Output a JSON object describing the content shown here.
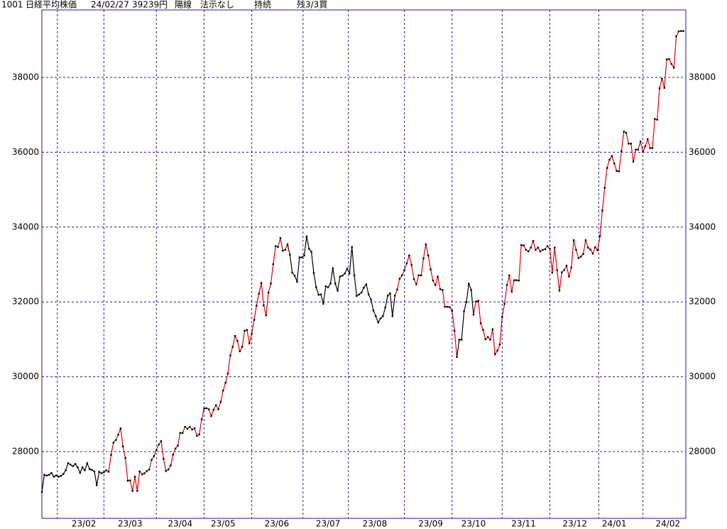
{
  "chart_data": {
    "type": "line",
    "title_items": [
      "1001",
      "日経平均株価",
      "24/02/27",
      "39239円",
      "陽線",
      "法示なし",
      "持続",
      "残3/3買"
    ],
    "values": [
      26920,
      27380,
      27360,
      27380,
      27430,
      27330,
      27360,
      27330,
      27350,
      27400,
      27500,
      27690,
      27650,
      27610,
      27670,
      27580,
      27430,
      27580,
      27500,
      27690,
      27530,
      27510,
      27470,
      27100,
      27460,
      27420,
      27450,
      27500,
      27460,
      27910,
      28240,
      28310,
      28450,
      28620,
      28140,
      27830,
      27220,
      27230,
      26950,
      27330,
      26950,
      27470,
      27390,
      27420,
      27480,
      27520,
      27780,
      27880,
      28040,
      28190,
      28280,
      27810,
      27480,
      27520,
      27630,
      27920,
      28080,
      28160,
      28500,
      28500,
      28660,
      28610,
      28660,
      28590,
      28620,
      28420,
      28460,
      28860,
      29150,
      29160,
      29130,
      28950,
      29120,
      29240,
      29130,
      29330,
      29630,
      29840,
      30090,
      30570,
      30800,
      31090,
      30960,
      30680,
      30800,
      31230,
      31250,
      30890,
      31150,
      31520,
      31900,
      32220,
      32510,
      31910,
      31640,
      32250,
      32490,
      33010,
      33490,
      33470,
      33710,
      33370,
      33390,
      33540,
      33260,
      32780,
      32700,
      32540,
      33190,
      33190,
      33240,
      33750,
      33420,
      33340,
      32770,
      32390,
      32190,
      32200,
      31950,
      32420,
      32390,
      32490,
      32900,
      32490,
      32300,
      32680,
      32700,
      32760,
      32890,
      32760,
      33470,
      32710,
      32160,
      32200,
      32250,
      32380,
      32470,
      32200,
      32060,
      31770,
      31620,
      31450,
      31560,
      31620,
      31850,
      32170,
      32230,
      31620,
      32170,
      32330,
      32620,
      32710,
      32850,
      33030,
      33240,
      32990,
      32610,
      32470,
      32710,
      32710,
      33160,
      33540,
      33240,
      32870,
      32570,
      32450,
      32680,
      32340,
      32320,
      31870,
      31870,
      31860,
      31760,
      31230,
      30530,
      30990,
      30990,
      31750,
      32000,
      32490,
      32320,
      31660,
      32010,
      32030,
      31430,
      31250,
      31000,
      31060,
      30990,
      31270,
      30600,
      30700,
      30860,
      31600,
      31950,
      32450,
      32710,
      32270,
      32580,
      32580,
      32570,
      33520,
      33510,
      33390,
      33350,
      33450,
      33630,
      33390,
      33450,
      33350,
      33390,
      33410,
      33490,
      33420,
      32780,
      33450,
      32850,
      32300,
      32790,
      32850,
      32970,
      32680,
      32920,
      33650,
      33390,
      33170,
      33210,
      33280,
      33650,
      33450,
      33400,
      33290,
      33460,
      33380,
      33760,
      34440,
      35050,
      35580,
      35800,
      35900,
      35700,
      35500,
      35490,
      36030,
      36550,
      36520,
      36230,
      36230,
      35750,
      36070,
      36070,
      36290,
      36010,
      36160,
      36350,
      36110,
      36110,
      36890,
      36870,
      37710,
      37960,
      37720,
      38480,
      38490,
      38360,
      38260,
      39100,
      39230,
      39240,
      39240
    ],
    "line_colors": [
      {
        "color": "#000000",
        "until": 27
      },
      {
        "color": "#e00000",
        "until": 103
      },
      {
        "color": "#000000",
        "until": 148
      },
      {
        "color": "#e00000",
        "until": 174
      },
      {
        "color": "#000000",
        "until": 181
      },
      {
        "color": "#e00000",
        "until": 269
      }
    ],
    "point_color": "#000000",
    "xlim": [
      0,
      270
    ],
    "xticks": [
      6.5,
      26,
      48,
      68,
      88,
      109.5,
      128.5,
      152,
      172,
      193,
      213,
      233.5,
      252
    ],
    "x_labels": [
      {
        "value": 17.6,
        "label": "23/02"
      },
      {
        "value": 37,
        "label": "23/03"
      },
      {
        "value": 58,
        "label": "23/04"
      },
      {
        "value": 76,
        "label": "23/05"
      },
      {
        "value": 98.5,
        "label": "23/06"
      },
      {
        "value": 120,
        "label": "23/07"
      },
      {
        "value": 139.6,
        "label": "23/08"
      },
      {
        "value": 163,
        "label": "23/09"
      },
      {
        "value": 181,
        "label": "23/10"
      },
      {
        "value": 202,
        "label": "23/11"
      },
      {
        "value": 223.5,
        "label": "23/12"
      },
      {
        "value": 240,
        "label": "24/01"
      },
      {
        "value": 262.5,
        "label": "24/02"
      }
    ],
    "ylim": [
      26216,
      39803
    ],
    "yticks": [
      28000,
      30000,
      32000,
      34000,
      36000,
      38000
    ],
    "grid": true
  }
}
